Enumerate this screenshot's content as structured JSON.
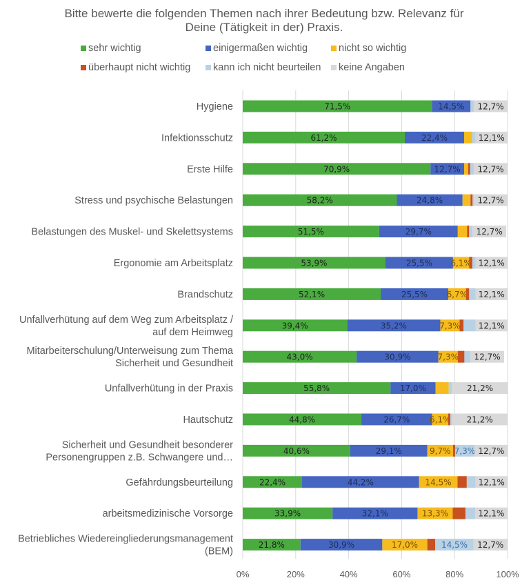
{
  "chart_data": {
    "type": "bar",
    "orientation": "horizontal",
    "stacked": true,
    "title": "Bitte bewerte die folgenden Themen nach ihrer Bedeutung bzw. Relevanz für Deine (Tätigkeit in der) Praxis.",
    "title_lines": [
      "Bitte bewerte die folgenden Themen nach ihrer Bedeutung bzw. Relevanz für",
      "Deine (Tätigkeit in der) Praxis."
    ],
    "legend_position": "top",
    "xlim": [
      0,
      100
    ],
    "x_ticks": [
      "0%",
      "20%",
      "40%",
      "60%",
      "80%",
      "100%"
    ],
    "grid": "vertical",
    "categories": [
      [
        "Hygiene"
      ],
      [
        "Infektionsschutz"
      ],
      [
        "Erste Hilfe"
      ],
      [
        "Stress und psychische Belastungen"
      ],
      [
        "Belastungen des Muskel- und Skelettsystems"
      ],
      [
        "Ergonomie am Arbeitsplatz"
      ],
      [
        "Brandschutz"
      ],
      [
        "Unfallverhütung auf dem Weg zum Arbeitsplatz /",
        "auf dem Heimweg"
      ],
      [
        "Mitarbeiterschulung/Unterweisung zum Thema",
        "Sicherheit und Gesundheit"
      ],
      [
        "Unfallverhütung in der Praxis"
      ],
      [
        "Hautschutz"
      ],
      [
        "Sicherheit und Gesundheit besonderer",
        "Personengruppen z.B. Schwangere und…"
      ],
      [
        "Gefährdungsbeurteilung"
      ],
      [
        "arbeitsmedizinische Vorsorge"
      ],
      [
        "Betriebliches Wiedereingliederungsmanagement",
        "(BEM)"
      ]
    ],
    "series": [
      {
        "name": "sehr wichtig",
        "color": "#4aac3f",
        "values": [
          71.5,
          61.2,
          70.9,
          58.2,
          51.5,
          53.9,
          52.1,
          39.4,
          43.0,
          55.8,
          44.8,
          40.6,
          22.4,
          33.9,
          21.8
        ],
        "labels": [
          "71,5%",
          "61,2%",
          "70,9%",
          "58,2%",
          "51,5%",
          "53,9%",
          "52,1%",
          "39,4%",
          "43,0%",
          "55,8%",
          "44,8%",
          "40,6%",
          "22,4%",
          "33,9%",
          "21,8%"
        ]
      },
      {
        "name": "einigermaßen wichtig",
        "color": "#4565c1",
        "values": [
          14.5,
          22.4,
          12.7,
          24.8,
          29.7,
          25.5,
          25.5,
          35.2,
          30.9,
          17.0,
          26.7,
          29.1,
          44.2,
          32.1,
          30.9
        ],
        "labels": [
          "14,5%",
          "22,4%",
          "12,7%",
          "24,8%",
          "29,7%",
          "25,5%",
          "25,5%",
          "35,2%",
          "30,9%",
          "17,0%",
          "26,7%",
          "29,1%",
          "44,2%",
          "32,1%",
          "30,9%"
        ]
      },
      {
        "name": "nicht so wichtig",
        "color": "#f6bb1e",
        "values": [
          0.0,
          3.0,
          1.5,
          3.0,
          3.5,
          6.1,
          6.7,
          7.3,
          7.3,
          5.0,
          6.1,
          9.7,
          14.5,
          13.3,
          17.0
        ],
        "labels": [
          "",
          "",
          "",
          "",
          "",
          "6,1%",
          "6,7%",
          "7,3%",
          "7,3%",
          "",
          "6,1%",
          "9,7%",
          "14,5%",
          "13,3%",
          "17,0%"
        ]
      },
      {
        "name": "überhaupt nicht wichtig",
        "color": "#c9511f",
        "values": [
          0.0,
          0.0,
          0.8,
          0.8,
          0.8,
          1.2,
          1.2,
          1.5,
          2.5,
          0.0,
          0.8,
          0.8,
          3.5,
          4.8,
          3.0
        ],
        "labels": [
          "",
          "",
          "",
          "",
          "",
          "",
          "",
          "",
          "",
          "",
          "",
          "",
          "",
          "",
          ""
        ]
      },
      {
        "name": "kann ich nicht beurteilen",
        "color": "#b9d1e4",
        "values": [
          1.3,
          1.3,
          1.4,
          0.5,
          1.3,
          1.2,
          2.4,
          4.5,
          2.3,
          1.2,
          0.5,
          7.3,
          3.3,
          3.7,
          14.5
        ],
        "labels": [
          "",
          "",
          "",
          "",
          "",
          "",
          "",
          "",
          "",
          "",
          "",
          "7,3%",
          "",
          "",
          "14,5%"
        ]
      },
      {
        "name": "keine Angaben",
        "color": "#d9d9d9",
        "values": [
          12.7,
          12.1,
          12.7,
          12.7,
          12.7,
          12.1,
          12.1,
          12.1,
          12.7,
          21.2,
          21.2,
          12.7,
          12.1,
          12.1,
          12.7
        ],
        "labels": [
          "12,7%",
          "12,1%",
          "12,7%",
          "12,7%",
          "12,7%",
          "12,1%",
          "12,1%",
          "12,1%",
          "12,7%",
          "21,2%",
          "21,2%",
          "12,7%",
          "12,1%",
          "12,1%",
          "12,7%"
        ]
      }
    ]
  }
}
